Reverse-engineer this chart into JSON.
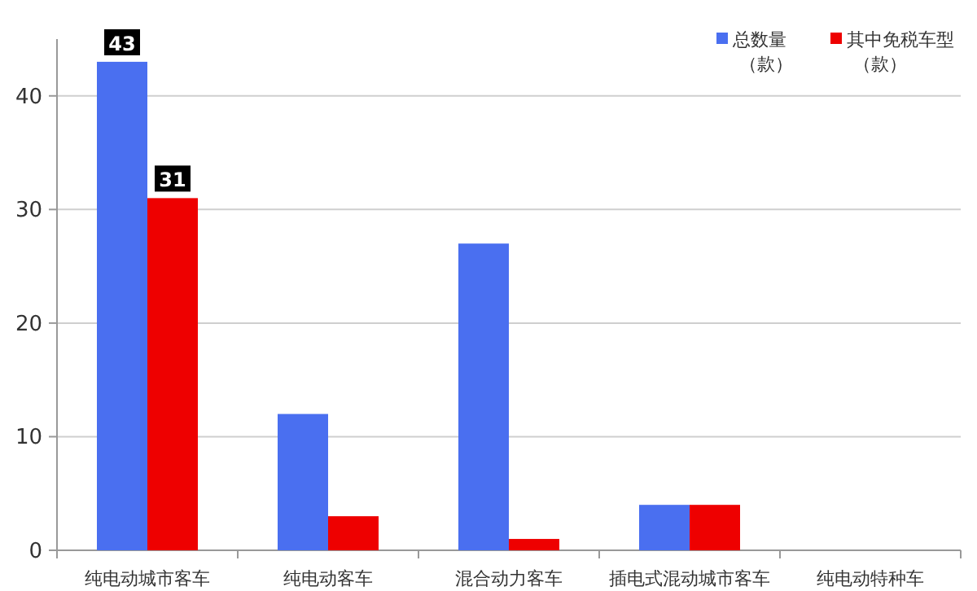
{
  "chart_data": {
    "type": "bar",
    "categories": [
      "纯电动城市客车",
      "纯电动客车",
      "混合动力客车",
      "插电式混动城市客车",
      "纯电动特种车"
    ],
    "series": [
      {
        "name": "总数量（款）",
        "color": "#4a6ff0",
        "values": [
          43,
          12,
          27,
          4,
          0
        ],
        "value_labels": [
          "43",
          null,
          null,
          null,
          null
        ]
      },
      {
        "name": "其中免税车型（款）",
        "color": "#ee0000",
        "values": [
          31,
          3,
          1,
          4,
          0
        ],
        "value_labels": [
          "31",
          null,
          null,
          null,
          null
        ]
      }
    ],
    "ylim": [
      0,
      45
    ],
    "yticks": [
      0,
      10,
      20,
      30,
      40
    ],
    "grid": "y",
    "legend": "top right"
  }
}
